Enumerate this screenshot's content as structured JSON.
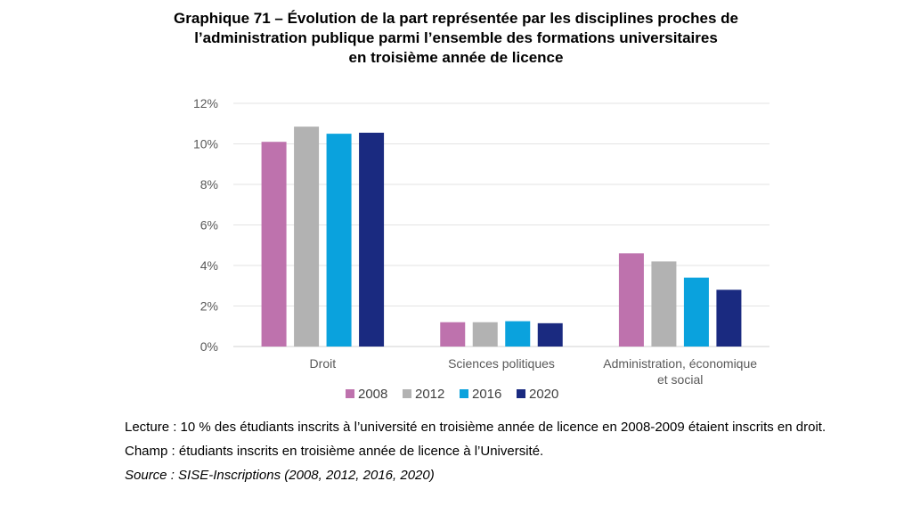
{
  "header": {
    "title_lines": [
      "Graphique 71 – Évolution de la part représentée par les disciplines proches de",
      "l’administration publique parmi l’ensemble des formations universitaires",
      "en troisième année de licence"
    ]
  },
  "chart_data": {
    "type": "bar",
    "categories": [
      [
        "Droit"
      ],
      [
        "Sciences politiques"
      ],
      [
        "Administration, économique",
        "et social"
      ]
    ],
    "series": [
      {
        "name": "2008",
        "color": "#be72ad",
        "values": [
          10.1,
          1.2,
          4.6
        ]
      },
      {
        "name": "2012",
        "color": "#b2b2b2",
        "values": [
          10.85,
          1.2,
          4.2
        ]
      },
      {
        "name": "2016",
        "color": "#0aa2dd",
        "values": [
          10.5,
          1.25,
          3.4
        ]
      },
      {
        "name": "2020",
        "color": "#1a2a80",
        "values": [
          10.55,
          1.15,
          2.8
        ]
      }
    ],
    "ylim": [
      0,
      12
    ],
    "yticks": [
      "0%",
      "2%",
      "4%",
      "6%",
      "8%",
      "10%",
      "12%"
    ],
    "grid": true,
    "legend_position": "bottom"
  },
  "notes": {
    "lecture": "Lecture : 10 % des étudiants inscrits à l’université en troisième année de licence en 2008-2009 étaient inscrits en droit.",
    "champ": "Champ : étudiants inscrits en troisième année de licence à l’Université.",
    "source": "Source : SISE-Inscriptions (2008, 2012, 2016, 2020)"
  }
}
